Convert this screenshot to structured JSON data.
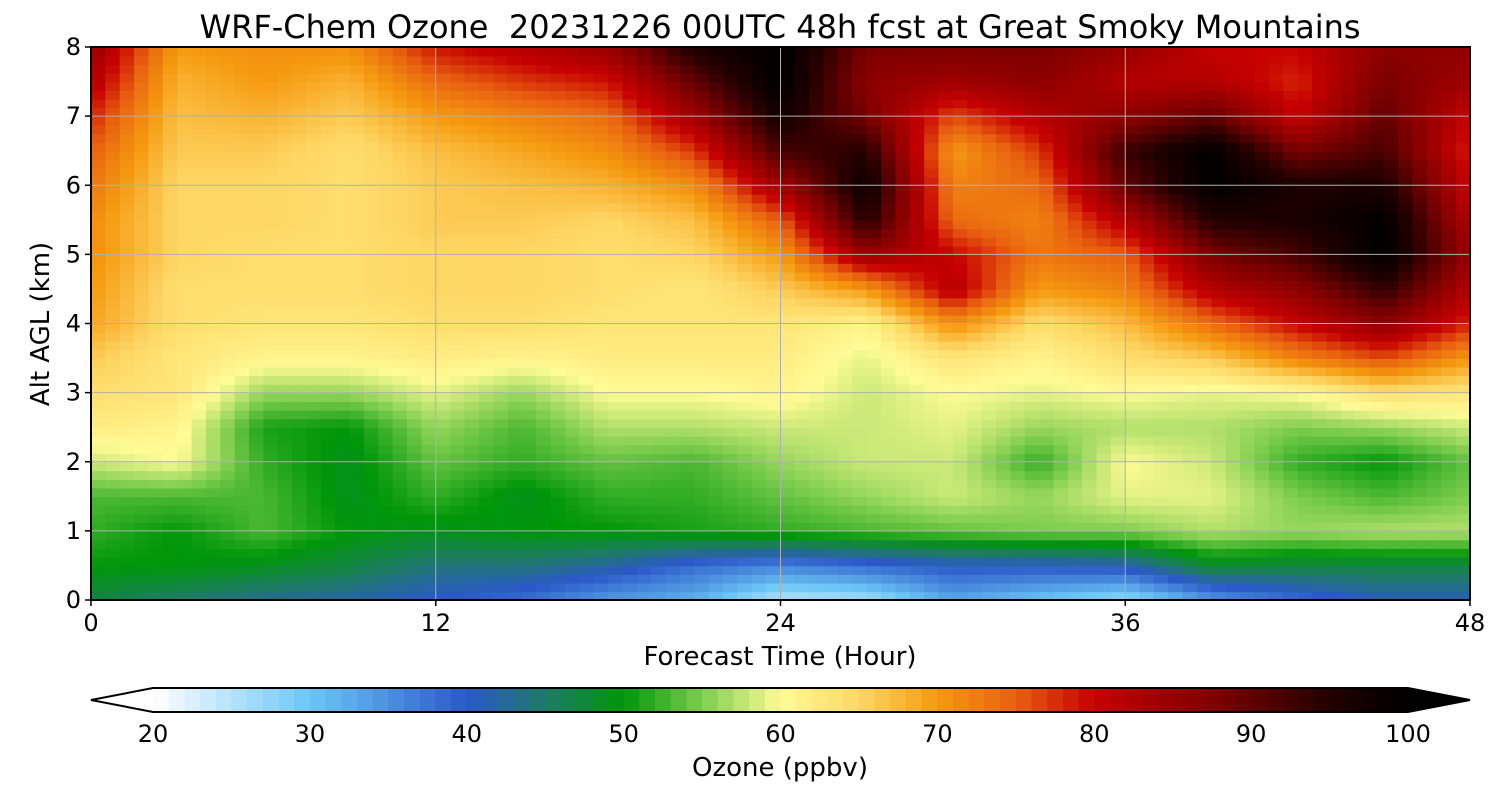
{
  "chart_data": {
    "type": "heatmap",
    "title": "WRF-Chem Ozone  20231226 00UTC 48h fcst at Great Smoky Mountains",
    "xlabel": "Forecast Time (Hour)",
    "ylabel": "Alt AGL (km)",
    "xlim": [
      0,
      48
    ],
    "ylim": [
      0,
      8
    ],
    "x_ticks": [
      0,
      12,
      24,
      36,
      48
    ],
    "y_ticks": [
      0,
      1,
      2,
      3,
      4,
      5,
      6,
      7,
      8
    ],
    "grid": true,
    "colorbar": {
      "label": "Ozone  (ppbv)",
      "range": [
        20,
        100
      ],
      "ticks": [
        20,
        30,
        40,
        50,
        60,
        70,
        80,
        90,
        100
      ],
      "extend": "both",
      "orientation": "horizontal"
    },
    "x": [
      0,
      3,
      6,
      9,
      12,
      15,
      18,
      21,
      24,
      27,
      30,
      33,
      36,
      39,
      42,
      45,
      48
    ],
    "y": [
      0,
      0.5,
      1,
      1.5,
      2,
      2.5,
      3,
      3.5,
      4,
      4.5,
      5,
      5.5,
      6,
      6.5,
      7,
      7.5,
      8
    ],
    "z": [
      [
        47,
        45,
        43,
        42,
        40,
        38,
        34,
        32,
        25,
        26,
        33,
        30,
        27,
        34,
        38,
        41,
        41
      ],
      [
        50,
        50,
        49,
        47,
        44,
        44,
        42,
        38,
        36,
        38,
        40,
        40,
        41,
        48,
        47,
        47,
        47
      ],
      [
        52,
        50,
        53,
        50,
        49,
        50,
        50,
        51,
        52,
        53,
        54,
        55,
        55,
        57,
        56,
        57,
        57
      ],
      [
        53,
        53,
        53,
        49,
        52,
        49,
        52,
        52,
        54,
        56,
        58,
        56,
        59,
        59,
        55,
        53,
        55
      ],
      [
        58,
        60,
        52,
        49,
        54,
        52,
        54,
        53,
        56,
        58,
        58,
        52,
        60,
        58,
        52,
        50,
        54
      ],
      [
        62,
        61,
        51,
        50,
        56,
        53,
        57,
        57,
        58,
        58,
        59,
        56,
        57,
        57,
        55,
        56,
        58
      ],
      [
        64,
        63,
        56,
        56,
        59,
        56,
        60,
        60,
        61,
        58,
        60,
        59,
        60,
        59,
        60,
        64,
        63
      ],
      [
        66,
        63,
        61,
        61,
        62,
        61,
        62,
        62,
        62,
        59,
        63,
        61,
        64,
        66,
        72,
        76,
        70
      ],
      [
        69,
        64,
        63,
        63,
        64,
        64,
        63,
        63,
        63,
        61,
        71,
        64,
        67,
        74,
        80,
        86,
        78
      ],
      [
        70,
        64,
        64,
        64,
        65,
        65,
        64,
        63,
        66,
        70,
        82,
        70,
        72,
        82,
        86,
        94,
        82
      ],
      [
        71,
        65,
        64,
        64,
        65,
        65,
        64,
        65,
        70,
        85,
        80,
        73,
        75,
        88,
        92,
        100,
        85
      ],
      [
        71,
        65,
        65,
        64,
        66,
        66,
        65,
        67,
        75,
        95,
        74,
        72,
        82,
        95,
        96,
        100,
        82
      ],
      [
        73,
        65,
        65,
        64,
        66,
        67,
        68,
        71,
        84,
        98,
        72,
        74,
        90,
        100,
        96,
        96,
        80
      ],
      [
        75,
        66,
        66,
        64,
        67,
        69,
        71,
        77,
        92,
        95,
        70,
        77,
        93,
        100,
        88,
        92,
        78
      ],
      [
        78,
        67,
        68,
        66,
        70,
        72,
        74,
        84,
        97,
        88,
        76,
        82,
        86,
        90,
        80,
        90,
        80
      ],
      [
        82,
        68,
        70,
        68,
        74,
        77,
        79,
        90,
        100,
        86,
        84,
        86,
        82,
        82,
        78,
        88,
        84
      ],
      [
        85,
        70,
        71,
        71,
        79,
        82,
        85,
        96,
        100,
        88,
        88,
        88,
        85,
        80,
        80,
        86,
        86
      ]
    ]
  },
  "colors": {
    "colormap_stops": [
      [
        20,
        "#ffffff"
      ],
      [
        30,
        "#6cc6f5"
      ],
      [
        40,
        "#2b58c9"
      ],
      [
        45,
        "#1f7a68"
      ],
      [
        50,
        "#00960a"
      ],
      [
        55,
        "#7dcd4e"
      ],
      [
        60,
        "#fffb96"
      ],
      [
        65,
        "#fed765"
      ],
      [
        70,
        "#f59a10"
      ],
      [
        75,
        "#e86010"
      ],
      [
        80,
        "#c60000"
      ],
      [
        88,
        "#7a0000"
      ],
      [
        95,
        "#220000"
      ],
      [
        100,
        "#000000"
      ]
    ]
  }
}
